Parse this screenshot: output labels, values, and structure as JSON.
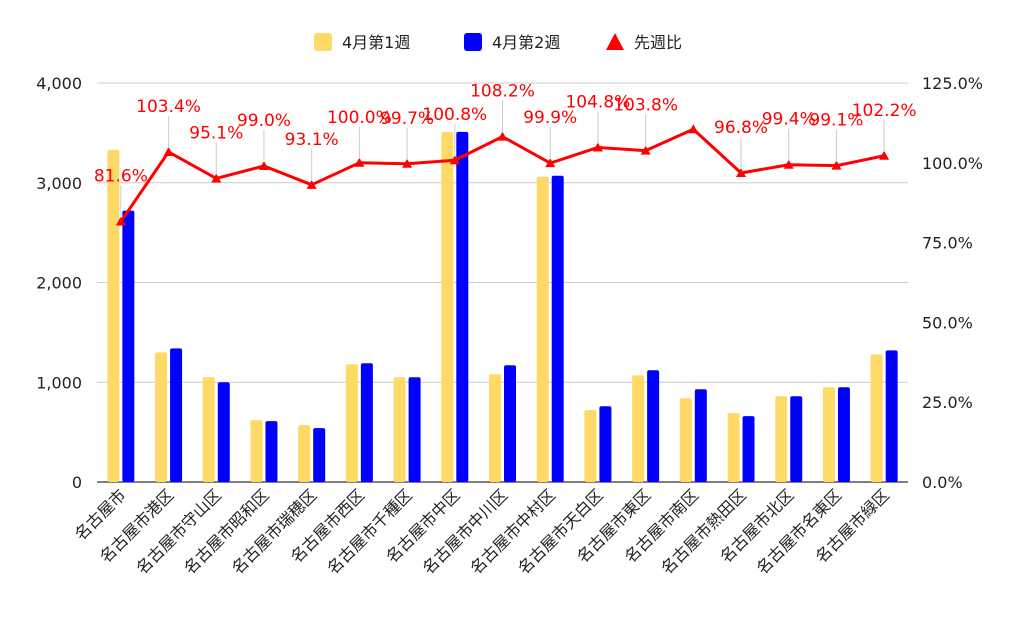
{
  "chart_data": {
    "type": "bar",
    "title": "",
    "xlabel": "",
    "ylabel": "",
    "categories": [
      "名古屋市",
      "名古屋市港区",
      "名古屋市守山区",
      "名古屋市昭和区",
      "名古屋市瑞穂区",
      "名古屋市西区",
      "名古屋市千種区",
      "名古屋市中区",
      "名古屋市中川区",
      "名古屋市中村区",
      "名古屋市天白区",
      "名古屋市東区",
      "名古屋市南区",
      "名古屋市熱田区",
      "名古屋市北区",
      "名古屋市名東区",
      "名古屋市緑区"
    ],
    "series": [
      {
        "name": "4月第1週",
        "kind": "bar",
        "axis": "left",
        "color": "#ffd966",
        "values": [
          3330,
          1300,
          1050,
          620,
          570,
          1180,
          1050,
          3510,
          1080,
          3060,
          720,
          1070,
          840,
          690,
          860,
          950,
          1280
        ]
      },
      {
        "name": "4月第2週",
        "kind": "bar",
        "axis": "left",
        "color": "#0000ff",
        "values": [
          2720,
          1340,
          1000,
          610,
          540,
          1190,
          1050,
          3510,
          1170,
          3070,
          760,
          1120,
          930,
          660,
          860,
          950,
          1320
        ]
      },
      {
        "name": "先週比",
        "kind": "line",
        "axis": "right",
        "color": "#ff0000",
        "values": [
          81.6,
          103.4,
          95.1,
          99.0,
          93.1,
          100.0,
          99.7,
          100.8,
          108.2,
          99.9,
          104.8,
          103.8,
          110.5,
          96.8,
          99.4,
          99.1,
          102.2
        ],
        "labels": [
          "81.6%",
          "103.4%",
          "95.1%",
          "99.0%",
          "93.1%",
          "100.0%",
          "99.7%",
          "100.8%",
          "108.2%",
          "99.9%",
          "104.8%",
          "103.8%",
          "",
          "96.8%",
          "99.4%",
          "99.1%",
          "102.2%"
        ]
      }
    ],
    "y_left": {
      "min": 0,
      "max": 4000,
      "ticks": [
        "0",
        "1,000",
        "2,000",
        "3,000",
        "4,000"
      ],
      "tick_values": [
        0,
        1000,
        2000,
        3000,
        4000
      ]
    },
    "y_right": {
      "min": 0,
      "max": 125,
      "ticks": [
        "0.0%",
        "25.0%",
        "50.0%",
        "75.0%",
        "100.0%",
        "125.0%"
      ],
      "tick_values": [
        0,
        25,
        50,
        75,
        100,
        125
      ]
    },
    "grid": true,
    "legend_position": "top-center",
    "legend": [
      {
        "label": "4月第1週",
        "marker": "square",
        "color": "#ffd966"
      },
      {
        "label": "4月第2週",
        "marker": "square",
        "color": "#0000ff"
      },
      {
        "label": "先週比",
        "marker": "triangle",
        "color": "#ff0000"
      }
    ]
  }
}
